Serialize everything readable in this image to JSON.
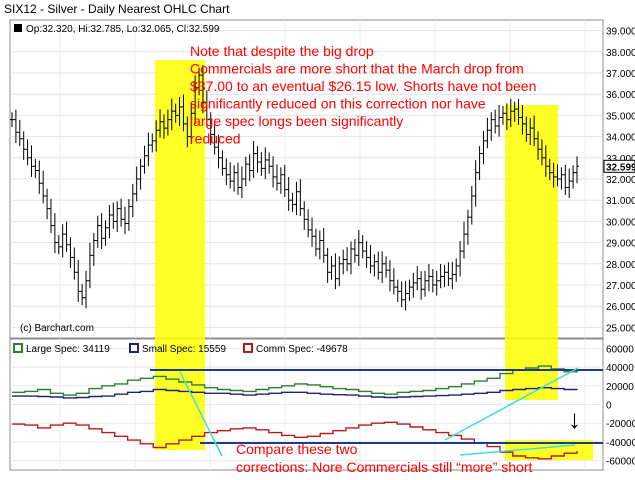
{
  "header": {
    "title": "SIX12 - Silver - Daily Nearest OHLC Chart",
    "ohlc_readout": "Op:32.320, Hi:32.785, Lo:32.065, Cl:32.599",
    "watermark": "(c) Barchart.com"
  },
  "price_axis": {
    "ticks": [
      "39.000",
      "38.000",
      "37.000",
      "36.000",
      "35.000",
      "34.000",
      "33.000",
      "32.000",
      "31.000",
      "30.000",
      "29.000",
      "28.000",
      "27.000",
      "26.000",
      "25.000"
    ],
    "last_price": "32.599"
  },
  "cot_axis": {
    "ticks": [
      "60000",
      "40000",
      "20000",
      "0",
      "-20000",
      "-40000",
      "-60000"
    ]
  },
  "cot_legend": [
    {
      "label": "Large Spec: 34119",
      "color": "#2e7d32"
    },
    {
      "label": "Small Spec: 15559",
      "color": "#1a237e"
    },
    {
      "label": "Comm Spec: -49678",
      "color": "#b71c1c"
    }
  ],
  "annotations": {
    "note_lines": [
      "Note that despite the big drop",
      "Commercials are more short that the March drop from",
      "$37.00 to an eventual $26.15 low. Shorts have not been",
      "significantly reduced on this correction nor have",
      "large spec longs been significantly",
      "reduced"
    ],
    "compare_lines": [
      "Compare these two",
      "corrections: Nore Commercials still “more” short"
    ],
    "arrow": "↓"
  },
  "colors": {
    "annotation": "#ff0000",
    "highlight": "#ffff00",
    "price_bars": "#000000",
    "large_spec": "#2e7d32",
    "small_spec": "#1a237e",
    "comm_spec": "#b71c1c",
    "trend_line": "#1e3a8a",
    "connector": "#40e0d0"
  },
  "chart_data": [
    {
      "type": "ohlc",
      "title": "SIX12 - Silver - Daily Nearest OHLC Chart",
      "ylim": [
        24.5,
        39.5
      ],
      "close": [
        34.8,
        34.2,
        33.9,
        33.4,
        33.0,
        32.6,
        32.4,
        31.8,
        31.2,
        30.6,
        29.8,
        29.0,
        28.8,
        29.4,
        28.9,
        28.3,
        27.6,
        26.7,
        26.4,
        27.2,
        28.4,
        29.1,
        29.8,
        29.2,
        29.7,
        30.3,
        30.0,
        30.6,
        30.1,
        29.9,
        30.7,
        31.3,
        32.0,
        32.6,
        33.1,
        33.6,
        33.8,
        34.3,
        34.7,
        34.4,
        34.8,
        35.2,
        35.0,
        35.4,
        34.6,
        34.0,
        35.1,
        36.3,
        36.9,
        35.6,
        34.8,
        34.1,
        33.5,
        33.0,
        32.5,
        32.2,
        31.9,
        32.3,
        31.6,
        32.0,
        32.7,
        32.4,
        33.2,
        32.8,
        32.5,
        32.9,
        32.6,
        32.1,
        31.8,
        32.2,
        31.5,
        31.0,
        30.8,
        31.4,
        30.6,
        30.1,
        29.6,
        29.3,
        28.7,
        29.1,
        28.4,
        27.6,
        27.9,
        27.3,
        28.0,
        28.2,
        28.0,
        28.7,
        28.4,
        29.0,
        28.6,
        28.3,
        27.9,
        28.1,
        27.6,
        28.0,
        27.7,
        27.2,
        26.9,
        26.7,
        26.3,
        26.6,
        26.9,
        27.1,
        27.3,
        26.8,
        27.2,
        27.4,
        27.0,
        27.2,
        27.4,
        27.6,
        27.3,
        27.5,
        27.9,
        28.6,
        29.4,
        30.2,
        31.2,
        32.3,
        33.2,
        33.8,
        34.3,
        34.8,
        34.5,
        34.9,
        35.1,
        34.8,
        35.2,
        35.3,
        34.9,
        34.6,
        34.1,
        34.4,
        33.9,
        33.4,
        33.0,
        32.6,
        32.3,
        32.1,
        32.0,
        32.2,
        31.6,
        31.9,
        32.3,
        32.6
      ],
      "note": "Daily OHLC bars; closes approximated from the chart"
    },
    {
      "type": "line",
      "legend": [
        "Large Spec: 34119",
        "Small Spec: 15559",
        "Comm Spec: -49678"
      ],
      "ylim": [
        -70000,
        70000
      ],
      "series": [
        {
          "name": "Large Spec",
          "values": [
            13000,
            14000,
            16000,
            12000,
            10000,
            12000,
            17000,
            20000,
            22000,
            26000,
            28000,
            30000,
            27000,
            24000,
            21000,
            18000,
            16000,
            15000,
            14000,
            16000,
            18000,
            20000,
            22000,
            21000,
            19000,
            17000,
            16000,
            14000,
            12000,
            11000,
            13000,
            14000,
            15000,
            17000,
            19000,
            22000,
            25000,
            28000,
            33000,
            37000,
            39000,
            41000,
            38000,
            35000,
            34119
          ]
        },
        {
          "name": "Small Spec",
          "values": [
            9000,
            9000,
            8500,
            8000,
            7000,
            7500,
            8500,
            9000,
            11000,
            13000,
            14000,
            16000,
            15000,
            14000,
            13000,
            12000,
            12000,
            11000,
            10000,
            11000,
            12000,
            13000,
            13000,
            12000,
            11000,
            10500,
            10000,
            9000,
            8000,
            7500,
            8000,
            8500,
            9000,
            9500,
            10000,
            11000,
            12000,
            13000,
            15000,
            16000,
            17000,
            18000,
            17000,
            16000,
            15559
          ]
        },
        {
          "name": "Comm Spec",
          "values": [
            -21000,
            -22000,
            -25000,
            -22000,
            -20000,
            -22000,
            -26000,
            -30000,
            -34000,
            -38000,
            -42000,
            -46000,
            -42000,
            -38000,
            -34000,
            -30000,
            -28000,
            -26000,
            -25000,
            -27000,
            -30000,
            -33000,
            -35000,
            -34000,
            -31000,
            -28000,
            -25000,
            -22000,
            -20000,
            -19000,
            -21000,
            -24000,
            -27000,
            -30000,
            -33000,
            -37000,
            -41000,
            -45000,
            -51000,
            -55000,
            -57000,
            -58000,
            -55000,
            -52000,
            -49678
          ]
        }
      ]
    }
  ]
}
